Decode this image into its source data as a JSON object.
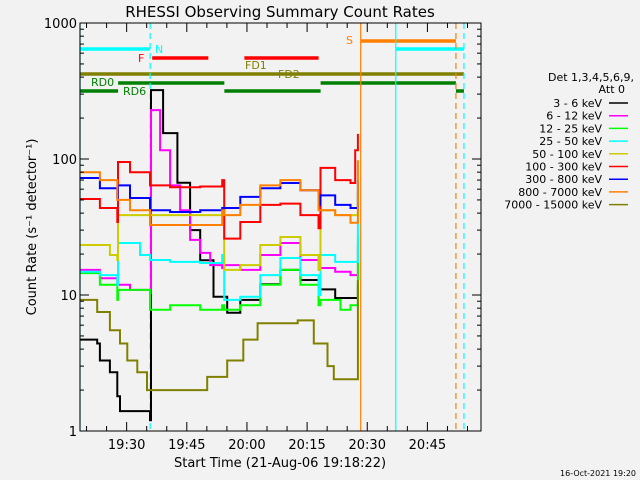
{
  "chart_data": {
    "type": "line",
    "title": "RHESSI Observing Summary Count Rates",
    "xlabel": "Start Time (21-Aug-06 19:18:22)",
    "ylabel": "Count Rate (s⁻¹ detector⁻¹)",
    "x_range": [
      "19:18:22",
      "20:58:22"
    ],
    "ylim": [
      1,
      1000
    ],
    "yscale": "log",
    "grid": false,
    "legend_placement": "right",
    "xticks": [
      "19:30",
      "19:45",
      "20:00",
      "20:15",
      "20:30",
      "20:45"
    ],
    "yticks": [
      "1",
      "10",
      "100",
      "1000"
    ],
    "legend_header": [
      "Det 1,3,4,5,6,9,",
      "Att 0"
    ],
    "series": [
      {
        "name": "3 - 6 keV",
        "color": "#000000",
        "points": [
          [
            "19:18:22",
            4.7
          ],
          [
            "19:22:40",
            4.4
          ],
          [
            "19:23:20",
            3.3
          ],
          [
            "19:25:50",
            2.7
          ],
          [
            "19:27:40",
            1.8
          ],
          [
            "19:28:20",
            1.4
          ],
          [
            "19:35:50",
            1.2
          ],
          [
            "19:36:05",
            321
          ],
          [
            "19:39:05",
            155
          ],
          [
            "19:42:40",
            67
          ],
          [
            "19:45:50",
            30
          ],
          [
            "19:48:20",
            18
          ],
          [
            "19:51:40",
            9.7
          ],
          [
            "19:55:05",
            7.4
          ],
          [
            "19:58:20",
            9.2
          ],
          [
            "20:03:20",
            12
          ],
          [
            "20:08:20",
            15.3
          ],
          [
            "20:13:20",
            12.9
          ],
          [
            "20:17:50",
            10
          ],
          [
            "20:18:20",
            11
          ],
          [
            "20:22:00",
            9.5
          ],
          [
            "20:26:40",
            9.5
          ],
          [
            "20:27:40",
            12
          ]
        ]
      },
      {
        "name": "6 - 12 keV",
        "color": "#ff00ff",
        "points": [
          [
            "19:18:22",
            15.3
          ],
          [
            "19:23:20",
            13.3
          ],
          [
            "19:27:40",
            11.9
          ],
          [
            "19:30:50",
            10.9
          ],
          [
            "19:35:50",
            10.3
          ],
          [
            "19:36:05",
            229
          ],
          [
            "19:38:20",
            116
          ],
          [
            "19:40:50",
            64
          ],
          [
            "19:43:20",
            42
          ],
          [
            "19:45:50",
            25.4
          ],
          [
            "19:48:20",
            20.4
          ],
          [
            "19:50:50",
            16.6
          ],
          [
            "19:53:50",
            15.8
          ],
          [
            "19:54:20",
            16.6
          ],
          [
            "19:58:20",
            15.3
          ],
          [
            "20:03:20",
            19.7
          ],
          [
            "20:08:20",
            24.1
          ],
          [
            "20:13:20",
            18.1
          ],
          [
            "20:17:50",
            15.3
          ],
          [
            "20:18:20",
            15.8
          ],
          [
            "20:22:00",
            14.8
          ],
          [
            "20:25:50",
            14
          ],
          [
            "20:27:40",
            23
          ]
        ]
      },
      {
        "name": "12 - 25 keV",
        "color": "#00ff00",
        "points": [
          [
            "19:18:22",
            14.5
          ],
          [
            "19:23:20",
            11.9
          ],
          [
            "19:27:40",
            9.2
          ],
          [
            "19:27:50",
            10.9
          ],
          [
            "19:35:50",
            7.8
          ],
          [
            "19:40:50",
            8.4
          ],
          [
            "19:48:20",
            7.8
          ],
          [
            "19:53:50",
            8.4
          ],
          [
            "19:54:20",
            7.8
          ],
          [
            "19:58:20",
            8.4
          ],
          [
            "20:03:20",
            11.9
          ],
          [
            "20:08:20",
            15.3
          ],
          [
            "20:13:20",
            11.9
          ],
          [
            "20:17:50",
            8.4
          ],
          [
            "20:18:20",
            9.2
          ],
          [
            "20:23:20",
            7.8
          ],
          [
            "20:25:50",
            8.4
          ],
          [
            "20:27:40",
            27.6
          ]
        ]
      },
      {
        "name": "25 - 50 keV",
        "color": "#00ffff",
        "points": [
          [
            "19:18:22",
            14.8
          ],
          [
            "19:23:20",
            14
          ],
          [
            "19:27:40",
            11.9
          ],
          [
            "19:27:50",
            24.1
          ],
          [
            "19:33:20",
            19.7
          ],
          [
            "19:35:50",
            18.1
          ],
          [
            "19:40:50",
            17.5
          ],
          [
            "19:48:20",
            17.2
          ],
          [
            "19:53:50",
            19.7
          ],
          [
            "19:54:20",
            9.2
          ],
          [
            "19:58:20",
            9.7
          ],
          [
            "20:03:20",
            14
          ],
          [
            "20:08:20",
            18.7
          ],
          [
            "20:13:20",
            14
          ],
          [
            "20:17:50",
            10
          ],
          [
            "20:18:20",
            19.7
          ],
          [
            "20:22:00",
            17.5
          ],
          [
            "20:25:50",
            17.5
          ],
          [
            "20:27:40",
            35.6
          ]
        ]
      },
      {
        "name": "50 - 100 keV",
        "color": "#cccc00",
        "points": [
          [
            "19:18:22",
            23.3
          ],
          [
            "19:25:50",
            19.7
          ],
          [
            "19:27:40",
            18.1
          ],
          [
            "19:27:50",
            38.7
          ],
          [
            "19:53:50",
            38.7
          ],
          [
            "19:54:20",
            15.3
          ],
          [
            "19:58:20",
            16.6
          ],
          [
            "20:03:20",
            23.3
          ],
          [
            "20:08:20",
            26.7
          ],
          [
            "20:13:20",
            19.7
          ],
          [
            "20:17:50",
            15.3
          ],
          [
            "20:18:20",
            42
          ],
          [
            "20:22:00",
            38.7
          ],
          [
            "20:25:50",
            38.7
          ],
          [
            "20:27:40",
            59
          ]
        ]
      },
      {
        "name": "100 - 300 keV",
        "color": "#ff0000",
        "points": [
          [
            "19:18:22",
            50.8
          ],
          [
            "19:23:20",
            43.6
          ],
          [
            "19:27:40",
            34.4
          ],
          [
            "19:27:50",
            95
          ],
          [
            "19:30:50",
            80
          ],
          [
            "19:35:50",
            64
          ],
          [
            "19:40:50",
            62
          ],
          [
            "19:48:20",
            62.8
          ],
          [
            "19:53:50",
            70
          ],
          [
            "19:54:20",
            26
          ],
          [
            "19:58:20",
            34.4
          ],
          [
            "20:03:20",
            46
          ],
          [
            "20:08:20",
            47
          ],
          [
            "20:13:20",
            38.7
          ],
          [
            "20:17:50",
            31
          ],
          [
            "20:18:20",
            86
          ],
          [
            "20:22:00",
            70
          ],
          [
            "20:25:50",
            66.6
          ],
          [
            "20:27:00",
            116
          ],
          [
            "20:27:40",
            153
          ]
        ]
      },
      {
        "name": "300 - 800 keV",
        "color": "#0000ff",
        "points": [
          [
            "19:18:22",
            72.5
          ],
          [
            "19:23:20",
            61
          ],
          [
            "19:27:40",
            51.7
          ],
          [
            "19:27:50",
            64
          ],
          [
            "19:30:50",
            51.7
          ],
          [
            "19:35:50",
            42
          ],
          [
            "19:40:50",
            40.8
          ],
          [
            "19:48:20",
            42
          ],
          [
            "19:53:50",
            43.6
          ],
          [
            "19:54:20",
            43.6
          ],
          [
            "19:58:20",
            52.6
          ],
          [
            "20:03:20",
            61
          ],
          [
            "20:08:20",
            66.6
          ],
          [
            "20:13:20",
            59
          ],
          [
            "20:17:50",
            46
          ],
          [
            "20:18:20",
            54
          ],
          [
            "20:22:00",
            46
          ],
          [
            "20:25:50",
            43.6
          ],
          [
            "20:27:40",
            70
          ]
        ]
      },
      {
        "name": "800 - 7000 keV",
        "color": "#ff8000",
        "points": [
          [
            "19:18:22",
            80
          ],
          [
            "19:23:20",
            70
          ],
          [
            "19:27:40",
            50
          ],
          [
            "19:30:50",
            42
          ],
          [
            "19:35:50",
            32.7
          ],
          [
            "19:48:20",
            32.7
          ],
          [
            "19:53:50",
            42
          ],
          [
            "19:54:20",
            38.7
          ],
          [
            "19:58:20",
            46
          ],
          [
            "20:03:20",
            64
          ],
          [
            "20:08:20",
            70
          ],
          [
            "20:13:20",
            59
          ],
          [
            "20:17:50",
            42
          ],
          [
            "20:18:20",
            42
          ],
          [
            "20:22:00",
            38.7
          ],
          [
            "20:25:50",
            34
          ],
          [
            "20:27:40",
            98
          ]
        ]
      },
      {
        "name": "7000 - 15000 keV",
        "color": "#808000",
        "points": [
          [
            "19:18:22",
            9.2
          ],
          [
            "19:22:40",
            7.5
          ],
          [
            "19:25:50",
            5.5
          ],
          [
            "19:28:20",
            4.4
          ],
          [
            "19:30:10",
            3.3
          ],
          [
            "19:32:40",
            2.7
          ],
          [
            "19:35:05",
            2
          ],
          [
            "19:50:00",
            2
          ],
          [
            "19:50:05",
            2.5
          ],
          [
            "19:55:05",
            3.3
          ],
          [
            "19:59:05",
            4.7
          ],
          [
            "20:02:40",
            6.2
          ],
          [
            "20:12:40",
            6.5
          ],
          [
            "20:16:40",
            4.4
          ],
          [
            "20:20:05",
            3
          ],
          [
            "20:21:40",
            2.4
          ],
          [
            "20:26:40",
            2.4
          ],
          [
            "20:27:40",
            12.9
          ]
        ]
      }
    ],
    "vertical_markers": [
      {
        "time": "19:18:22",
        "color": "#00ffff",
        "style": "solid"
      },
      {
        "time": "19:35:52",
        "color": "#00ffff",
        "style": "dashed"
      },
      {
        "time": "20:28:22",
        "color": "#ff8000",
        "style": "solid"
      },
      {
        "time": "20:37:07",
        "color": "#00ffff",
        "style": "solid"
      },
      {
        "time": "20:52:07",
        "color": "#ff8000",
        "style": "dashed"
      },
      {
        "time": "20:54:07",
        "color": "#00ffff",
        "style": "dashed"
      }
    ],
    "flag_bars": [
      {
        "flag": "S",
        "color": "#ff8000",
        "intervals": [
          [
            "20:28:22",
            "20:52:07"
          ]
        ]
      },
      {
        "flag": "N",
        "color": "#00ffff",
        "intervals": [
          [
            "19:18:22",
            "19:35:52"
          ],
          [
            "20:37:07",
            "20:54:07"
          ]
        ]
      },
      {
        "flag": "F",
        "color": "#ff0000",
        "intervals": [
          [
            "19:36:22",
            "19:50:22"
          ],
          [
            "19:59:22",
            "20:17:52"
          ]
        ]
      },
      {
        "flag": "FD2",
        "color": "#808000",
        "intervals": [
          [
            "19:18:22",
            "20:54:07"
          ]
        ]
      },
      {
        "flag": "RD0",
        "color": "#008000",
        "intervals": [
          [
            "19:27:52",
            "19:54:22"
          ],
          [
            "20:18:22",
            "20:52:07"
          ]
        ]
      },
      {
        "flag": "RD6",
        "color": "#008000",
        "intervals": [
          [
            "19:18:22",
            "19:27:52"
          ],
          [
            "19:54:22",
            "20:18:22"
          ],
          [
            "20:52:07",
            "20:54:07"
          ]
        ]
      }
    ],
    "flag_labels": [
      {
        "text": "S",
        "color": "#ff8000"
      },
      {
        "text": "N",
        "color": "#00ffff"
      },
      {
        "text": "F",
        "color": "#ff0000"
      },
      {
        "text": "FD1",
        "color": "#808000"
      },
      {
        "text": "FD2",
        "color": "#808000"
      },
      {
        "text": "RD0",
        "color": "#008000"
      },
      {
        "text": "RD6",
        "color": "#008000"
      }
    ]
  },
  "footer": {
    "timestamp": "16-Oct-2021 19:20"
  }
}
